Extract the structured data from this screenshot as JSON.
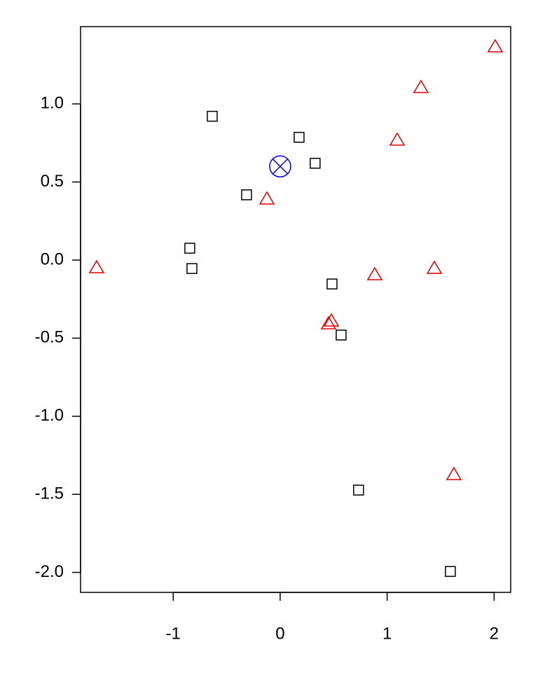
{
  "chart_data": {
    "type": "scatter",
    "xlim": [
      -1.866,
      2.155
    ],
    "ylim": [
      -2.128,
      1.495
    ],
    "xticks": [
      -1,
      0,
      1,
      2
    ],
    "yticks": [
      {
        "value": 1,
        "label": "1.0"
      },
      0.5,
      {
        "value": 0,
        "label": "0.0"
      },
      -0.5,
      {
        "value": -1,
        "label": "-1.0"
      },
      -1.5,
      {
        "value": -2,
        "label": "-2.0"
      }
    ],
    "series": [
      {
        "color": "#000000",
        "marker": "square",
        "x": [
          -0.635,
          0.177,
          0.327,
          -0.314,
          -0.845,
          -0.825,
          0.485,
          0.57,
          0.733,
          1.591
        ],
        "values": [
          0.921,
          0.786,
          0.62,
          0.418,
          0.076,
          -0.054,
          -0.153,
          -0.48,
          -1.473,
          -1.994
        ]
      },
      {
        "color": "#e00000",
        "marker": "triangle",
        "x": [
          2.01,
          1.316,
          1.094,
          -0.124,
          -1.716,
          0.884,
          1.441,
          0.478,
          0.452,
          1.624
        ],
        "values": [
          1.37,
          1.109,
          0.772,
          0.395,
          -0.045,
          -0.09,
          -0.049,
          -0.386,
          -0.404,
          -1.37
        ]
      },
      {
        "color": "#0000ee",
        "marker": "circle-x",
        "x": [
          0
        ],
        "values": [
          0.6
        ]
      }
    ]
  }
}
